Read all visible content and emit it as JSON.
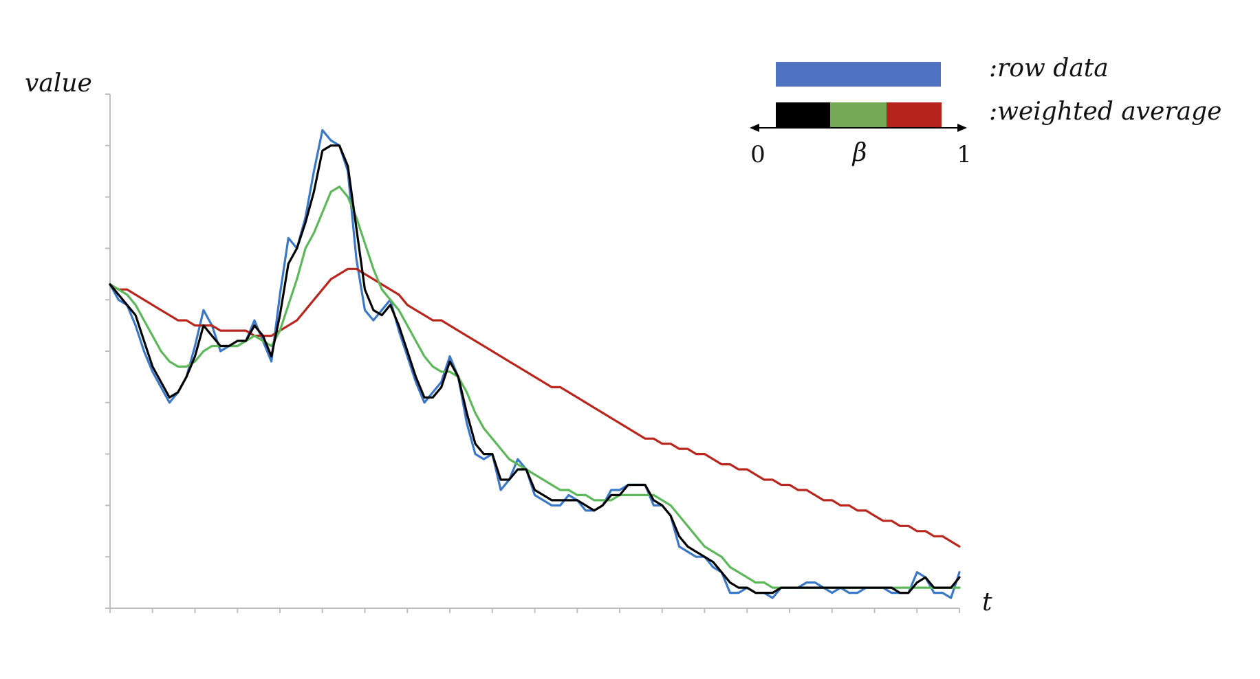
{
  "chart_data": {
    "type": "line",
    "title": "",
    "xlabel": "t",
    "ylabel": "value",
    "xlim": [
      0,
      100
    ],
    "ylim": [
      0,
      100
    ],
    "grid": false,
    "legend_position": "top-right",
    "colors": {
      "raw": "#3b78c8",
      "ema_low": "#000000",
      "ema_mid": "#5db85a",
      "ema_high": "#b8261d",
      "legend_raw": "#4f73c0",
      "legend_black": "#000000",
      "legend_green": "#76a956",
      "legend_red": "#b5241c"
    },
    "legend": {
      "raw_label": ":row data",
      "avg_label": ":weighted average",
      "beta_symbol": "β",
      "beta_min": "0",
      "beta_max": "1"
    },
    "series": [
      {
        "key": "raw",
        "x": [
          0,
          1,
          2,
          3,
          4,
          5,
          6,
          7,
          8,
          9,
          10,
          11,
          12,
          13,
          14,
          15,
          16,
          17,
          18,
          19,
          20,
          21,
          22,
          23,
          24,
          25,
          26,
          27,
          28,
          29,
          30,
          31,
          32,
          33,
          34,
          35,
          36,
          37,
          38,
          39,
          40,
          41,
          42,
          43,
          44,
          45,
          46,
          47,
          48,
          49,
          50,
          51,
          52,
          53,
          54,
          55,
          56,
          57,
          58,
          59,
          60,
          61,
          62,
          63,
          64,
          65,
          66,
          67,
          68,
          69,
          70,
          71,
          72,
          73,
          74,
          75,
          76,
          77,
          78,
          79,
          80,
          81,
          82,
          83,
          84,
          85,
          86,
          87,
          88,
          89,
          90,
          91,
          92,
          93,
          94,
          95,
          96,
          97,
          98,
          99,
          100
        ],
        "values": [
          63,
          60,
          59,
          55,
          50,
          46,
          43,
          40,
          42,
          45,
          51,
          58,
          55,
          50,
          51,
          51,
          52,
          56,
          52,
          48,
          61,
          72,
          70,
          76,
          85,
          93,
          91,
          90,
          85,
          68,
          58,
          56,
          58,
          60,
          54,
          49,
          44,
          40,
          42,
          44,
          49,
          45,
          36,
          30,
          29,
          30,
          23,
          25,
          29,
          27,
          22,
          21,
          20,
          20,
          22,
          21,
          19,
          19,
          20,
          23,
          23,
          24,
          24,
          24,
          20,
          20,
          18,
          12,
          11,
          10,
          10,
          8,
          7,
          3,
          3,
          4,
          3,
          3,
          2,
          4,
          4,
          4,
          5,
          5,
          4,
          3,
          4,
          3,
          3,
          4,
          4,
          4,
          3,
          3,
          3,
          7,
          6,
          3,
          3,
          2,
          7
        ]
      },
      {
        "key": "ema_low",
        "x": [
          0,
          1,
          2,
          3,
          4,
          5,
          6,
          7,
          8,
          9,
          10,
          11,
          12,
          13,
          14,
          15,
          16,
          17,
          18,
          19,
          20,
          21,
          22,
          23,
          24,
          25,
          26,
          27,
          28,
          29,
          30,
          31,
          32,
          33,
          34,
          35,
          36,
          37,
          38,
          39,
          40,
          41,
          42,
          43,
          44,
          45,
          46,
          47,
          48,
          49,
          50,
          51,
          52,
          53,
          54,
          55,
          56,
          57,
          58,
          59,
          60,
          61,
          62,
          63,
          64,
          65,
          66,
          67,
          68,
          69,
          70,
          71,
          72,
          73,
          74,
          75,
          76,
          77,
          78,
          79,
          80,
          81,
          82,
          83,
          84,
          85,
          86,
          87,
          88,
          89,
          90,
          91,
          92,
          93,
          94,
          95,
          96,
          97,
          98,
          99,
          100
        ],
        "values": [
          63,
          61,
          59,
          57,
          52,
          47,
          44,
          41,
          42,
          45,
          49,
          55,
          53,
          51,
          51,
          52,
          52,
          55,
          53,
          49,
          57,
          67,
          70,
          75,
          81,
          89,
          90,
          90,
          86,
          74,
          62,
          58,
          57,
          59,
          55,
          50,
          45,
          41,
          41,
          43,
          48,
          45,
          38,
          32,
          30,
          30,
          25,
          25,
          27,
          27,
          23,
          22,
          21,
          21,
          21,
          21,
          20,
          19,
          20,
          22,
          22,
          24,
          24,
          24,
          21,
          20,
          18,
          14,
          12,
          11,
          10,
          9,
          7,
          5,
          4,
          4,
          3,
          3,
          3,
          4,
          4,
          4,
          4,
          4,
          4,
          4,
          4,
          4,
          4,
          4,
          4,
          4,
          4,
          3,
          3,
          5,
          6,
          4,
          4,
          4,
          6
        ]
      },
      {
        "key": "ema_mid",
        "x": [
          0,
          1,
          2,
          3,
          4,
          5,
          6,
          7,
          8,
          9,
          10,
          11,
          12,
          13,
          14,
          15,
          16,
          17,
          18,
          19,
          20,
          21,
          22,
          23,
          24,
          25,
          26,
          27,
          28,
          29,
          30,
          31,
          32,
          33,
          34,
          35,
          36,
          37,
          38,
          39,
          40,
          41,
          42,
          43,
          44,
          45,
          46,
          47,
          48,
          49,
          50,
          51,
          52,
          53,
          54,
          55,
          56,
          57,
          58,
          59,
          60,
          61,
          62,
          63,
          64,
          65,
          66,
          67,
          68,
          69,
          70,
          71,
          72,
          73,
          74,
          75,
          76,
          77,
          78,
          79,
          80,
          81,
          82,
          83,
          84,
          85,
          86,
          87,
          88,
          89,
          90,
          91,
          92,
          93,
          94,
          95,
          96,
          97,
          98,
          99,
          100
        ],
        "values": [
          63,
          62,
          61,
          59,
          56,
          53,
          50,
          48,
          47,
          47,
          48,
          50,
          51,
          51,
          51,
          51,
          52,
          53,
          52,
          51,
          54,
          59,
          64,
          70,
          73,
          77,
          81,
          82,
          80,
          76,
          71,
          66,
          62,
          60,
          58,
          55,
          52,
          49,
          47,
          46,
          46,
          45,
          42,
          38,
          35,
          33,
          31,
          29,
          28,
          27,
          26,
          25,
          24,
          23,
          23,
          22,
          22,
          21,
          21,
          21,
          22,
          22,
          22,
          22,
          22,
          21,
          20,
          18,
          16,
          14,
          12,
          11,
          10,
          8,
          7,
          6,
          5,
          5,
          4,
          4,
          4,
          4,
          4,
          4,
          4,
          4,
          4,
          4,
          4,
          4,
          4,
          4,
          4,
          4,
          4,
          4,
          4,
          4,
          4,
          4,
          4
        ]
      },
      {
        "key": "ema_high",
        "x": [
          0,
          1,
          2,
          3,
          4,
          5,
          6,
          7,
          8,
          9,
          10,
          11,
          12,
          13,
          14,
          15,
          16,
          17,
          18,
          19,
          20,
          21,
          22,
          23,
          24,
          25,
          26,
          27,
          28,
          29,
          30,
          31,
          32,
          33,
          34,
          35,
          36,
          37,
          38,
          39,
          40,
          41,
          42,
          43,
          44,
          45,
          46,
          47,
          48,
          49,
          50,
          51,
          52,
          53,
          54,
          55,
          56,
          57,
          58,
          59,
          60,
          61,
          62,
          63,
          64,
          65,
          66,
          67,
          68,
          69,
          70,
          71,
          72,
          73,
          74,
          75,
          76,
          77,
          78,
          79,
          80,
          81,
          82,
          83,
          84,
          85,
          86,
          87,
          88,
          89,
          90,
          91,
          92,
          93,
          94,
          95,
          96,
          97,
          98,
          99,
          100
        ],
        "values": [
          63,
          62,
          62,
          61,
          60,
          59,
          58,
          57,
          56,
          56,
          55,
          55,
          55,
          54,
          54,
          54,
          54,
          53,
          53,
          53,
          54,
          55,
          56,
          58,
          60,
          62,
          64,
          65,
          66,
          66,
          65,
          64,
          63,
          62,
          61,
          59,
          58,
          57,
          56,
          56,
          55,
          54,
          53,
          52,
          51,
          50,
          49,
          48,
          47,
          46,
          45,
          44,
          43,
          43,
          42,
          41,
          40,
          39,
          38,
          37,
          36,
          35,
          34,
          33,
          33,
          32,
          32,
          31,
          31,
          30,
          30,
          29,
          28,
          28,
          27,
          27,
          26,
          25,
          25,
          24,
          24,
          23,
          23,
          22,
          21,
          21,
          20,
          20,
          19,
          19,
          18,
          17,
          17,
          16,
          16,
          15,
          15,
          14,
          14,
          13,
          12
        ]
      }
    ]
  }
}
